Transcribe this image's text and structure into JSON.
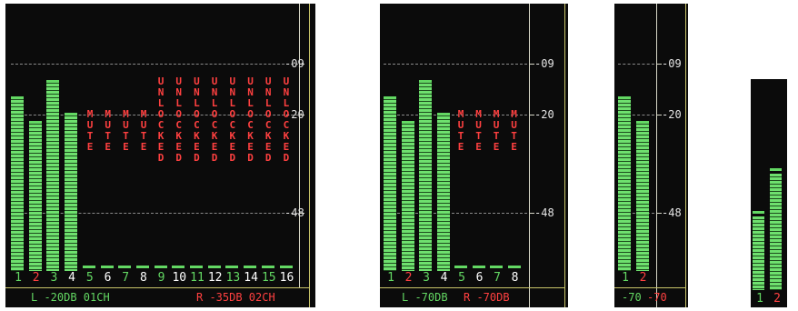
{
  "colors": {
    "green": "#63d863",
    "red": "#ff4040",
    "white": "#e6e6e6",
    "border": "#c9c56a"
  },
  "scale_labels": [
    "-09",
    "-20",
    "-48"
  ],
  "panel_a": {
    "channel_numbers": [
      "1",
      "2",
      "3",
      "4",
      "5",
      "6",
      "7",
      "8",
      "9",
      "10",
      "11",
      "12",
      "13",
      "14",
      "15",
      "16"
    ],
    "channel_levels": [
      0.64,
      0.55,
      0.7,
      0.58,
      0,
      0,
      0,
      0,
      0,
      0,
      0,
      0,
      0,
      0,
      0,
      0
    ],
    "mute_columns_short": [
      "M\nU\nT\nE",
      "M\nU\nT\nE",
      "M\nU\nT\nE",
      "M\nU\nT\nE"
    ],
    "mute_columns_long": [
      "U\nN\nL\nO\nC\nK\nE\nD",
      "U\nN\nL\nO\nC\nK\nE\nD",
      "U\nN\nL\nO\nC\nK\nE\nD",
      "U\nN\nL\nO\nC\nK\nE\nD",
      "U\nN\nL\nO\nC\nK\nE\nD",
      "U\nN\nL\nO\nC\nK\nE\nD",
      "U\nN\nL\nO\nC\nK\nE\nD",
      "U\nN\nL\nO\nC\nK\nE\nD"
    ],
    "footer_left": "L -20DB 01CH",
    "footer_right": "R -35DB 02CH"
  },
  "panel_b": {
    "channel_numbers": [
      "1",
      "2",
      "3",
      "4",
      "5",
      "6",
      "7",
      "8"
    ],
    "channel_levels": [
      0.64,
      0.55,
      0.7,
      0.58,
      0,
      0,
      0,
      0
    ],
    "mute_columns": [
      "M\nU\nT\nE",
      "M\nU\nT\nE",
      "M\nU\nT\nE",
      "M\nU\nT\nE"
    ],
    "footer_left": "L -70DB",
    "footer_right": "R -70DB"
  },
  "panel_c": {
    "channel_numbers": [
      "1",
      "2"
    ],
    "channel_levels": [
      0.64,
      0.55
    ],
    "footer_left": "-70",
    "footer_right": "-70"
  },
  "panel_d": {
    "channel_numbers": [
      "1",
      "2"
    ],
    "channel_levels": [
      0.35,
      0.55
    ]
  }
}
